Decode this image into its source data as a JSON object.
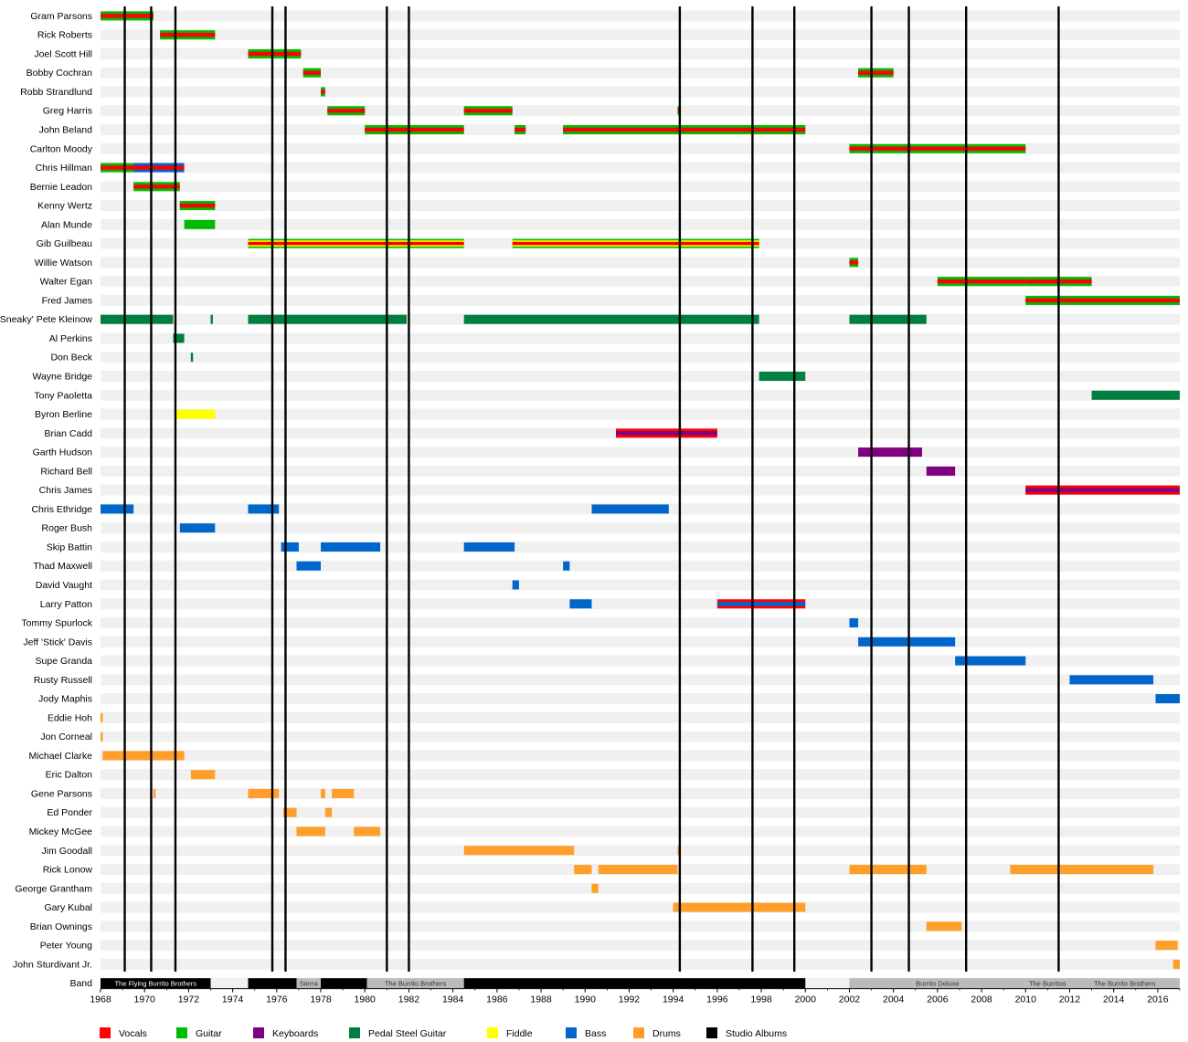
{
  "chart_data": {
    "type": "timeline",
    "title": "",
    "xlim": [
      1968,
      2017
    ],
    "x_ticks": [
      "1968",
      "1970",
      "1972",
      "1974",
      "1976",
      "1978",
      "1980",
      "1982",
      "1984",
      "1986",
      "1988",
      "1990",
      "1992",
      "1994",
      "1996",
      "1998",
      "2000",
      "2002",
      "2004",
      "2006",
      "2008",
      "2010",
      "2012",
      "2014",
      "2016"
    ],
    "colors": {
      "Vocals": "#ff0000",
      "Guitar": "#00bb00",
      "Keyboards": "#800080",
      "Pedal Steel Guitar": "#008040",
      "Fiddle": "#ffff00",
      "Bass": "#0066cc",
      "Drums": "#ff9f2a",
      "Studio Albums": "#000000",
      "BandBlack": "#000000",
      "BandGray": "#bbbbbb"
    },
    "legend": [
      "Vocals",
      "Guitar",
      "Keyboards",
      "Pedal Steel Guitar",
      "Fiddle",
      "Bass",
      "Drums",
      "Studio Albums"
    ],
    "members": [
      {
        "name": "Gram Parsons",
        "bars": [
          {
            "from": 1968.0,
            "to": 1970.4,
            "roles": [
              "Vocals",
              "Guitar"
            ]
          }
        ]
      },
      {
        "name": "Rick Roberts",
        "bars": [
          {
            "from": 1970.7,
            "to": 1973.2,
            "roles": [
              "Vocals",
              "Guitar"
            ]
          }
        ]
      },
      {
        "name": "Joel Scott Hill",
        "bars": [
          {
            "from": 1974.7,
            "to": 1977.1,
            "roles": [
              "Vocals",
              "Guitar"
            ]
          }
        ]
      },
      {
        "name": "Bobby Cochran",
        "bars": [
          {
            "from": 1977.2,
            "to": 1978.0,
            "roles": [
              "Vocals",
              "Guitar"
            ]
          },
          {
            "from": 2002.4,
            "to": 2004.0,
            "roles": [
              "Vocals",
              "Guitar"
            ]
          }
        ]
      },
      {
        "name": "Robb Strandlund",
        "bars": [
          {
            "from": 1978.0,
            "to": 1978.2,
            "roles": [
              "Vocals",
              "Guitar"
            ]
          }
        ]
      },
      {
        "name": "Greg Harris",
        "bars": [
          {
            "from": 1978.3,
            "to": 1980.0,
            "roles": [
              "Vocals",
              "Guitar"
            ]
          },
          {
            "from": 1984.5,
            "to": 1986.7,
            "roles": [
              "Vocals",
              "Guitar"
            ]
          },
          {
            "from": 1994.2,
            "to": 1994.3,
            "roles": [
              "Vocals",
              "Guitar"
            ]
          }
        ]
      },
      {
        "name": "John Beland",
        "bars": [
          {
            "from": 1980.0,
            "to": 1984.5,
            "roles": [
              "Vocals",
              "Guitar"
            ]
          },
          {
            "from": 1986.8,
            "to": 1987.3,
            "roles": [
              "Vocals",
              "Guitar"
            ]
          },
          {
            "from": 1989.0,
            "to": 2000.0,
            "roles": [
              "Vocals",
              "Guitar"
            ]
          }
        ]
      },
      {
        "name": "Carlton Moody",
        "bars": [
          {
            "from": 2002.0,
            "to": 2010.0,
            "roles": [
              "Vocals",
              "Guitar"
            ]
          }
        ]
      },
      {
        "name": "Chris Hillman",
        "bars": [
          {
            "from": 1968.0,
            "to": 1969.5,
            "roles": [
              "Vocals",
              "Guitar"
            ]
          },
          {
            "from": 1969.5,
            "to": 1971.8,
            "roles": [
              "Vocals",
              "Bass"
            ]
          }
        ]
      },
      {
        "name": "Bernie Leadon",
        "bars": [
          {
            "from": 1969.5,
            "to": 1971.6,
            "roles": [
              "Vocals",
              "Guitar"
            ]
          }
        ]
      },
      {
        "name": "Kenny Wertz",
        "bars": [
          {
            "from": 1971.6,
            "to": 1973.2,
            "roles": [
              "Vocals",
              "Guitar"
            ]
          }
        ]
      },
      {
        "name": "Alan Munde",
        "bars": [
          {
            "from": 1971.8,
            "to": 1973.2,
            "roles": [
              "Guitar"
            ]
          }
        ]
      },
      {
        "name": "Gib Guilbeau",
        "bars": [
          {
            "from": 1974.7,
            "to": 1984.5,
            "roles": [
              "Vocals",
              "Fiddle",
              "Guitar"
            ]
          },
          {
            "from": 1986.7,
            "to": 1997.9,
            "roles": [
              "Vocals",
              "Fiddle",
              "Guitar"
            ]
          }
        ]
      },
      {
        "name": "Willie Watson",
        "bars": [
          {
            "from": 2002.0,
            "to": 2002.4,
            "roles": [
              "Vocals",
              "Guitar"
            ]
          }
        ]
      },
      {
        "name": "Walter Egan",
        "bars": [
          {
            "from": 2006.0,
            "to": 2010.0,
            "roles": [
              "Vocals",
              "Guitar"
            ]
          },
          {
            "from": 2010.0,
            "to": 2013.0,
            "roles": [
              "Vocals",
              "Guitar"
            ]
          }
        ]
      },
      {
        "name": "Fred James",
        "bars": [
          {
            "from": 2010.0,
            "to": 2017.0,
            "roles": [
              "Vocals",
              "Guitar"
            ]
          }
        ]
      },
      {
        "name": "'Sneaky' Pete Kleinow",
        "bars": [
          {
            "from": 1968.0,
            "to": 1971.3,
            "roles": [
              "Pedal Steel Guitar"
            ]
          },
          {
            "from": 1973.0,
            "to": 1973.1,
            "roles": [
              "Pedal Steel Guitar"
            ]
          },
          {
            "from": 1974.7,
            "to": 1981.9,
            "roles": [
              "Pedal Steel Guitar"
            ]
          },
          {
            "from": 1984.5,
            "to": 1997.9,
            "roles": [
              "Pedal Steel Guitar"
            ]
          },
          {
            "from": 2002.0,
            "to": 2005.5,
            "roles": [
              "Pedal Steel Guitar"
            ]
          }
        ]
      },
      {
        "name": "Al Perkins",
        "bars": [
          {
            "from": 1971.3,
            "to": 1971.8,
            "roles": [
              "Pedal Steel Guitar"
            ]
          }
        ]
      },
      {
        "name": "Don Beck",
        "bars": [
          {
            "from": 1972.1,
            "to": 1972.2,
            "roles": [
              "Pedal Steel Guitar"
            ]
          }
        ]
      },
      {
        "name": "Wayne Bridge",
        "bars": [
          {
            "from": 1997.9,
            "to": 2000.0,
            "roles": [
              "Pedal Steel Guitar"
            ]
          }
        ]
      },
      {
        "name": "Tony Paoletta",
        "bars": [
          {
            "from": 2013.0,
            "to": 2017.0,
            "roles": [
              "Pedal Steel Guitar"
            ]
          }
        ]
      },
      {
        "name": "Byron Berline",
        "bars": [
          {
            "from": 1971.4,
            "to": 1973.2,
            "roles": [
              "Fiddle"
            ]
          }
        ]
      },
      {
        "name": "Brian Cadd",
        "bars": [
          {
            "from": 1991.4,
            "to": 1996.0,
            "roles": [
              "Keyboards",
              "Vocals"
            ]
          }
        ]
      },
      {
        "name": "Garth Hudson",
        "bars": [
          {
            "from": 2002.4,
            "to": 2005.3,
            "roles": [
              "Keyboards"
            ]
          }
        ]
      },
      {
        "name": "Richard Bell",
        "bars": [
          {
            "from": 2005.5,
            "to": 2006.8,
            "roles": [
              "Keyboards"
            ]
          }
        ]
      },
      {
        "name": "Chris James",
        "bars": [
          {
            "from": 2010.0,
            "to": 2017.0,
            "roles": [
              "Keyboards",
              "Vocals"
            ]
          }
        ]
      },
      {
        "name": "Chris Ethridge",
        "bars": [
          {
            "from": 1968.0,
            "to": 1969.5,
            "roles": [
              "Bass"
            ]
          },
          {
            "from": 1974.7,
            "to": 1976.1,
            "roles": [
              "Bass"
            ]
          },
          {
            "from": 1990.3,
            "to": 1993.8,
            "roles": [
              "Bass"
            ]
          }
        ]
      },
      {
        "name": "Roger Bush",
        "bars": [
          {
            "from": 1971.6,
            "to": 1973.2,
            "roles": [
              "Bass"
            ]
          }
        ]
      },
      {
        "name": "Skip Battin",
        "bars": [
          {
            "from": 1976.2,
            "to": 1977.0,
            "roles": [
              "Bass"
            ]
          },
          {
            "from": 1978.0,
            "to": 1980.7,
            "roles": [
              "Bass"
            ]
          },
          {
            "from": 1984.5,
            "to": 1986.8,
            "roles": [
              "Bass"
            ]
          }
        ]
      },
      {
        "name": "Thad Maxwell",
        "bars": [
          {
            "from": 1976.9,
            "to": 1978.0,
            "roles": [
              "Bass"
            ]
          },
          {
            "from": 1989.0,
            "to": 1989.3,
            "roles": [
              "Bass"
            ]
          }
        ]
      },
      {
        "name": "David Vaught",
        "bars": [
          {
            "from": 1986.7,
            "to": 1987.0,
            "roles": [
              "Bass"
            ]
          }
        ]
      },
      {
        "name": "Larry Patton",
        "bars": [
          {
            "from": 1989.3,
            "to": 1990.3,
            "roles": [
              "Bass"
            ]
          },
          {
            "from": 1996.0,
            "to": 2000.0,
            "roles": [
              "Bass",
              "Vocals"
            ]
          }
        ]
      },
      {
        "name": "Tommy Spurlock",
        "bars": [
          {
            "from": 2002.0,
            "to": 2002.4,
            "roles": [
              "Bass"
            ]
          }
        ]
      },
      {
        "name": "Jeff 'Stick' Davis",
        "bars": [
          {
            "from": 2002.4,
            "to": 2006.8,
            "roles": [
              "Bass"
            ]
          }
        ]
      },
      {
        "name": "Supe Granda",
        "bars": [
          {
            "from": 2006.8,
            "to": 2010.0,
            "roles": [
              "Bass"
            ]
          }
        ]
      },
      {
        "name": "Rusty Russell",
        "bars": [
          {
            "from": 2012.0,
            "to": 2015.8,
            "roles": [
              "Bass"
            ]
          }
        ]
      },
      {
        "name": "Jody Maphis",
        "bars": [
          {
            "from": 2015.9,
            "to": 2017.0,
            "roles": [
              "Bass"
            ]
          }
        ]
      },
      {
        "name": "Eddie Hoh",
        "bars": [
          {
            "from": 1968.0,
            "to": 1968.1,
            "roles": [
              "Drums"
            ]
          }
        ]
      },
      {
        "name": "Jon Corneal",
        "bars": [
          {
            "from": 1968.0,
            "to": 1968.1,
            "roles": [
              "Drums"
            ]
          }
        ]
      },
      {
        "name": "Michael Clarke",
        "bars": [
          {
            "from": 1968.1,
            "to": 1971.8,
            "roles": [
              "Drums"
            ]
          }
        ]
      },
      {
        "name": "Eric Dalton",
        "bars": [
          {
            "from": 1972.1,
            "to": 1973.2,
            "roles": [
              "Drums"
            ]
          }
        ]
      },
      {
        "name": "Gene Parsons",
        "bars": [
          {
            "from": 1970.4,
            "to": 1970.5,
            "roles": [
              "Drums"
            ]
          },
          {
            "from": 1974.7,
            "to": 1976.1,
            "roles": [
              "Drums"
            ]
          },
          {
            "from": 1978.0,
            "to": 1978.2,
            "roles": [
              "Drums"
            ]
          },
          {
            "from": 1978.5,
            "to": 1979.5,
            "roles": [
              "Drums"
            ]
          }
        ]
      },
      {
        "name": "Ed Ponder",
        "bars": [
          {
            "from": 1976.3,
            "to": 1976.9,
            "roles": [
              "Drums"
            ]
          },
          {
            "from": 1978.2,
            "to": 1978.5,
            "roles": [
              "Drums"
            ]
          }
        ]
      },
      {
        "name": "Mickey McGee",
        "bars": [
          {
            "from": 1976.9,
            "to": 1978.2,
            "roles": [
              "Drums"
            ]
          },
          {
            "from": 1979.5,
            "to": 1980.7,
            "roles": [
              "Drums"
            ]
          }
        ]
      },
      {
        "name": "Jim Goodall",
        "bars": [
          {
            "from": 1984.5,
            "to": 1989.5,
            "roles": [
              "Drums"
            ]
          },
          {
            "from": 1994.2,
            "to": 1994.3,
            "roles": [
              "Drums"
            ]
          }
        ]
      },
      {
        "name": "Rick Lonow",
        "bars": [
          {
            "from": 1989.5,
            "to": 1990.3,
            "roles": [
              "Drums"
            ]
          },
          {
            "from": 1990.6,
            "to": 1994.2,
            "roles": [
              "Drums"
            ]
          },
          {
            "from": 2002.0,
            "to": 2005.5,
            "roles": [
              "Drums"
            ]
          },
          {
            "from": 2009.3,
            "to": 2015.8,
            "roles": [
              "Drums"
            ]
          }
        ]
      },
      {
        "name": "George Grantham",
        "bars": [
          {
            "from": 1990.3,
            "to": 1990.6,
            "roles": [
              "Drums"
            ]
          }
        ]
      },
      {
        "name": "Gary Kubal",
        "bars": [
          {
            "from": 1994.0,
            "to": 2000.0,
            "roles": [
              "Drums"
            ]
          }
        ]
      },
      {
        "name": "Brian Ownings",
        "bars": [
          {
            "from": 2005.5,
            "to": 2007.1,
            "roles": [
              "Drums"
            ]
          }
        ]
      },
      {
        "name": "Peter Young",
        "bars": [
          {
            "from": 2015.9,
            "to": 2016.9,
            "roles": [
              "Drums"
            ]
          }
        ]
      },
      {
        "name": "John Sturdivant Jr.",
        "bars": [
          {
            "from": 2016.7,
            "to": 2017.0,
            "roles": [
              "Drums"
            ]
          }
        ]
      }
    ],
    "studio_albums": [
      1969.1,
      1970.3,
      1971.4,
      1975.8,
      1976.4,
      1981.0,
      1982.0,
      1994.3,
      1997.6,
      1999.5,
      2003.0,
      2004.7,
      2007.3,
      2011.5
    ],
    "band_row_label": "Band",
    "band_segments": [
      {
        "from": 1968.0,
        "to": 1973.0,
        "label": "The Flying Burrito Brothers",
        "style": "black"
      },
      {
        "from": 1974.7,
        "to": 1976.9,
        "label": "",
        "style": "black"
      },
      {
        "from": 1976.9,
        "to": 1978.0,
        "label": "Sierra",
        "style": "gray"
      },
      {
        "from": 1978.0,
        "to": 1980.1,
        "label": "",
        "style": "black"
      },
      {
        "from": 1980.1,
        "to": 1984.5,
        "label": "The Burrito Brothers",
        "style": "gray"
      },
      {
        "from": 1984.5,
        "to": 2000.0,
        "label": "",
        "style": "black"
      },
      {
        "from": 2002.0,
        "to": 2010.0,
        "label": "Burrito Deluxe",
        "style": "gray"
      },
      {
        "from": 2010.0,
        "to": 2012.0,
        "label": "The Burritos",
        "style": "gray"
      },
      {
        "from": 2012.0,
        "to": 2017.0,
        "label": "The Burrito Brothers",
        "style": "gray"
      }
    ]
  }
}
